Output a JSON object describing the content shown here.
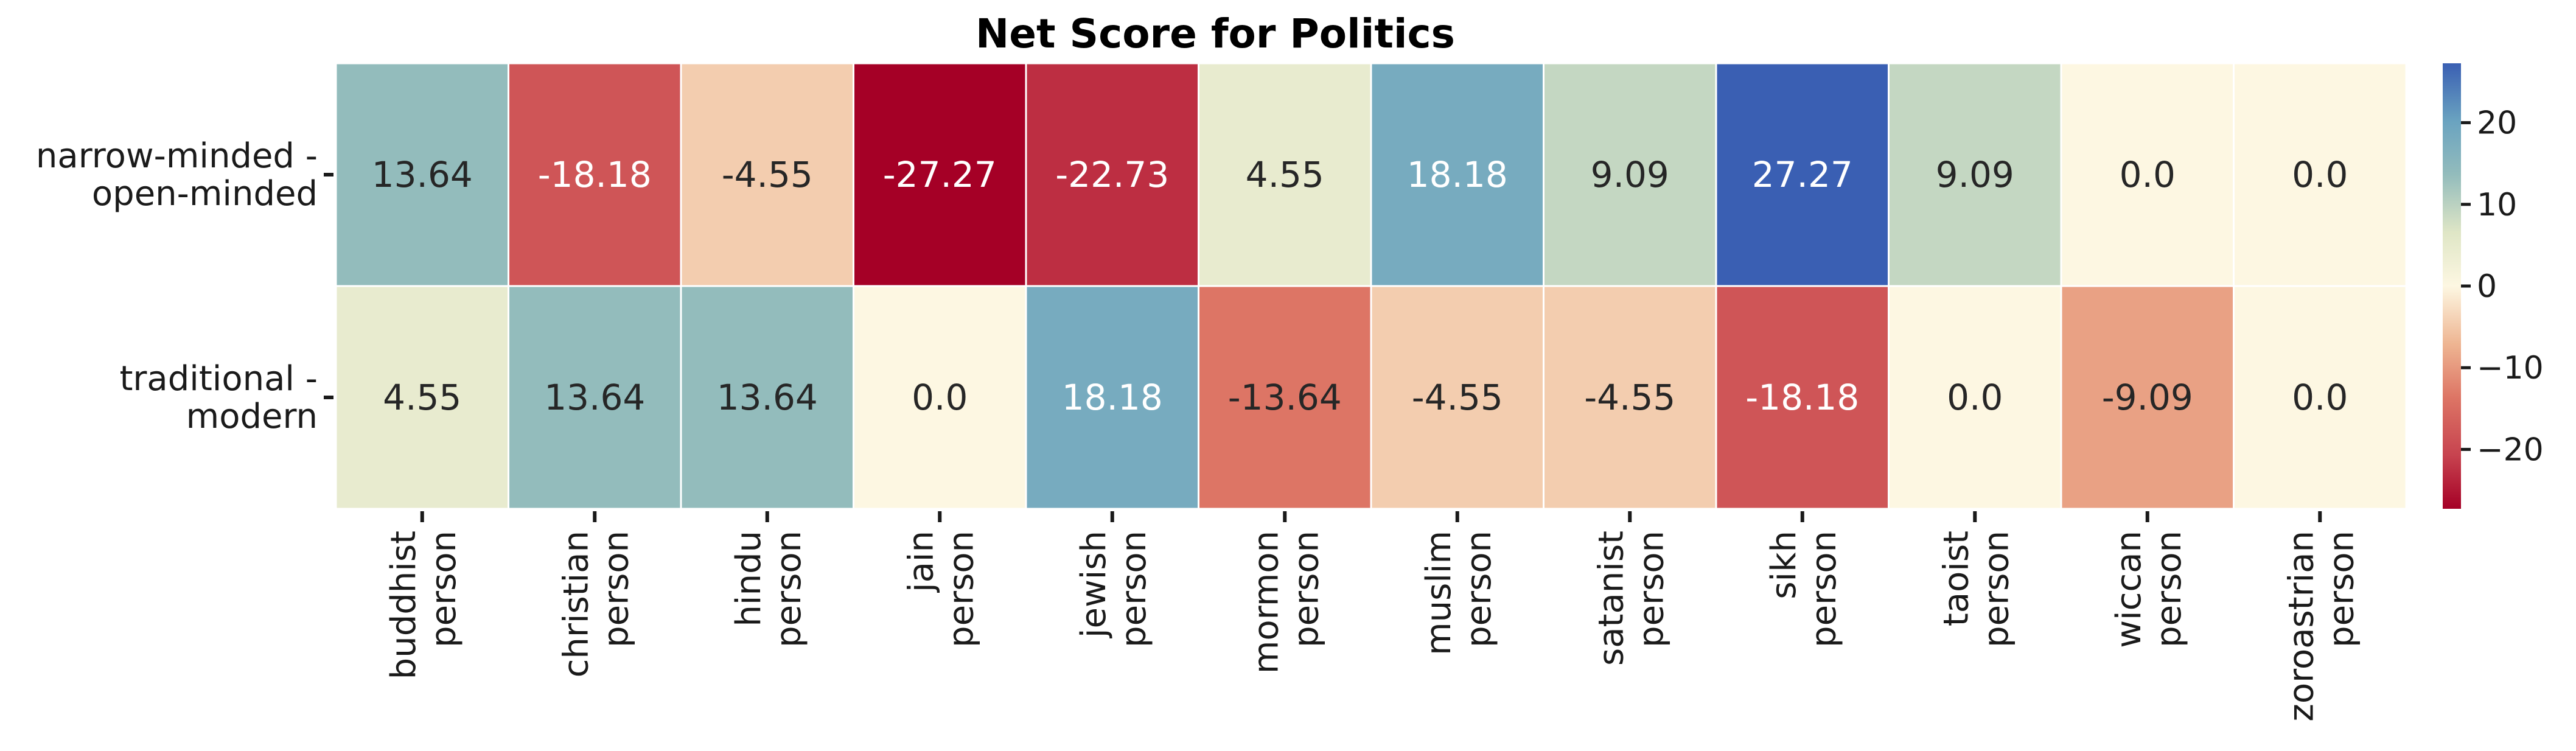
{
  "chart_data": {
    "type": "heatmap",
    "title": "Net Score for Politics",
    "rows": [
      [
        "narrow-minded -",
        "open-minded"
      ],
      [
        "traditional -",
        "modern"
      ]
    ],
    "columns": [
      [
        "buddhist",
        "person"
      ],
      [
        "christian",
        "person"
      ],
      [
        "hindu",
        "person"
      ],
      [
        "jain",
        "person"
      ],
      [
        "jewish",
        "person"
      ],
      [
        "mormon",
        "person"
      ],
      [
        "muslim",
        "person"
      ],
      [
        "satanist",
        "person"
      ],
      [
        "sikh",
        "person"
      ],
      [
        "taoist",
        "person"
      ],
      [
        "wiccan",
        "person"
      ],
      [
        "zoroastrian",
        "person"
      ]
    ],
    "values": [
      [
        13.64,
        -18.18,
        -4.55,
        -27.27,
        -22.73,
        4.55,
        18.18,
        9.09,
        27.27,
        9.09,
        0.0,
        0.0
      ],
      [
        4.55,
        13.64,
        13.64,
        0.0,
        18.18,
        -13.64,
        -4.55,
        -4.55,
        -18.18,
        0.0,
        -9.09,
        0.0
      ]
    ],
    "value_labels": [
      [
        "13.64",
        "-18.18",
        "-4.55",
        "-27.27",
        "-22.73",
        "4.55",
        "18.18",
        "9.09",
        "27.27",
        "9.09",
        "0.0",
        "0.0"
      ],
      [
        "4.55",
        "13.64",
        "13.64",
        "0.0",
        "18.18",
        "-13.64",
        "-4.55",
        "-4.55",
        "-18.18",
        "0.0",
        "-9.09",
        "0.0"
      ]
    ],
    "colormap": "RdYlBu",
    "vmin": -27.27,
    "vmax": 27.27,
    "colorbar": {
      "ticks": [
        20,
        10,
        0,
        -10,
        -20
      ],
      "tick_labels": [
        "20",
        "10",
        "0",
        "−10",
        "−20"
      ],
      "placement": "right"
    }
  }
}
